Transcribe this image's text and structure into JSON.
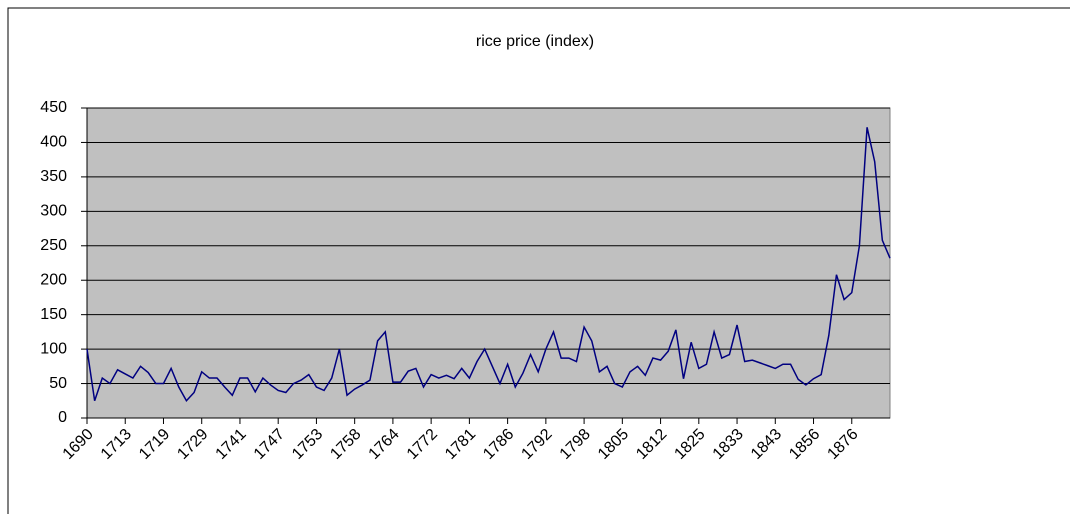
{
  "chart_data": {
    "type": "line",
    "title": "rice price (index)",
    "categories": [
      "1690",
      null,
      null,
      null,
      null,
      "1713",
      null,
      null,
      null,
      null,
      "1719",
      null,
      null,
      null,
      null,
      "1729",
      null,
      null,
      null,
      null,
      "1741",
      null,
      null,
      null,
      null,
      "1747",
      null,
      null,
      null,
      null,
      "1753",
      null,
      null,
      null,
      null,
      "1758",
      null,
      null,
      null,
      null,
      "1764",
      null,
      null,
      null,
      null,
      "1772",
      null,
      null,
      null,
      null,
      "1781",
      null,
      null,
      null,
      null,
      "1786",
      null,
      null,
      null,
      null,
      "1792",
      null,
      null,
      null,
      null,
      "1798",
      null,
      null,
      null,
      null,
      "1805",
      null,
      null,
      null,
      null,
      "1812",
      null,
      null,
      null,
      null,
      "1825",
      null,
      null,
      null,
      null,
      "1833",
      null,
      null,
      null,
      null,
      "1843",
      null,
      null,
      null,
      null,
      "1856",
      null,
      null,
      null,
      null,
      "1876",
      null,
      null,
      null,
      null,
      null
    ],
    "series": [
      {
        "name": "rice price (index)",
        "color": "#000080",
        "values": [
          100,
          25,
          58,
          50,
          70,
          64,
          58,
          75,
          66,
          50,
          50,
          72,
          45,
          25,
          37,
          67,
          58,
          58,
          45,
          33,
          58,
          58,
          38,
          58,
          48,
          40,
          37,
          50,
          55,
          63,
          45,
          40,
          58,
          100,
          33,
          42,
          48,
          55,
          112,
          125,
          52,
          52,
          68,
          72,
          45,
          63,
          58,
          62,
          57,
          72,
          58,
          82,
          100,
          75,
          50,
          78,
          45,
          65,
          92,
          67,
          100,
          125,
          87,
          87,
          82,
          132,
          112,
          67,
          75,
          50,
          45,
          67,
          75,
          62,
          87,
          84,
          97,
          128,
          57,
          110,
          72,
          78,
          125,
          87,
          92,
          135,
          82,
          84,
          80,
          76,
          72,
          78,
          78,
          56,
          48,
          57,
          63,
          120,
          208,
          172,
          182,
          250,
          422,
          372,
          258,
          232
        ]
      }
    ],
    "ylim": [
      0,
      450
    ],
    "yticks": [
      0,
      50,
      100,
      150,
      200,
      250,
      300,
      350,
      400,
      450
    ],
    "grid": true,
    "plot_background": "#c0c0c0"
  }
}
